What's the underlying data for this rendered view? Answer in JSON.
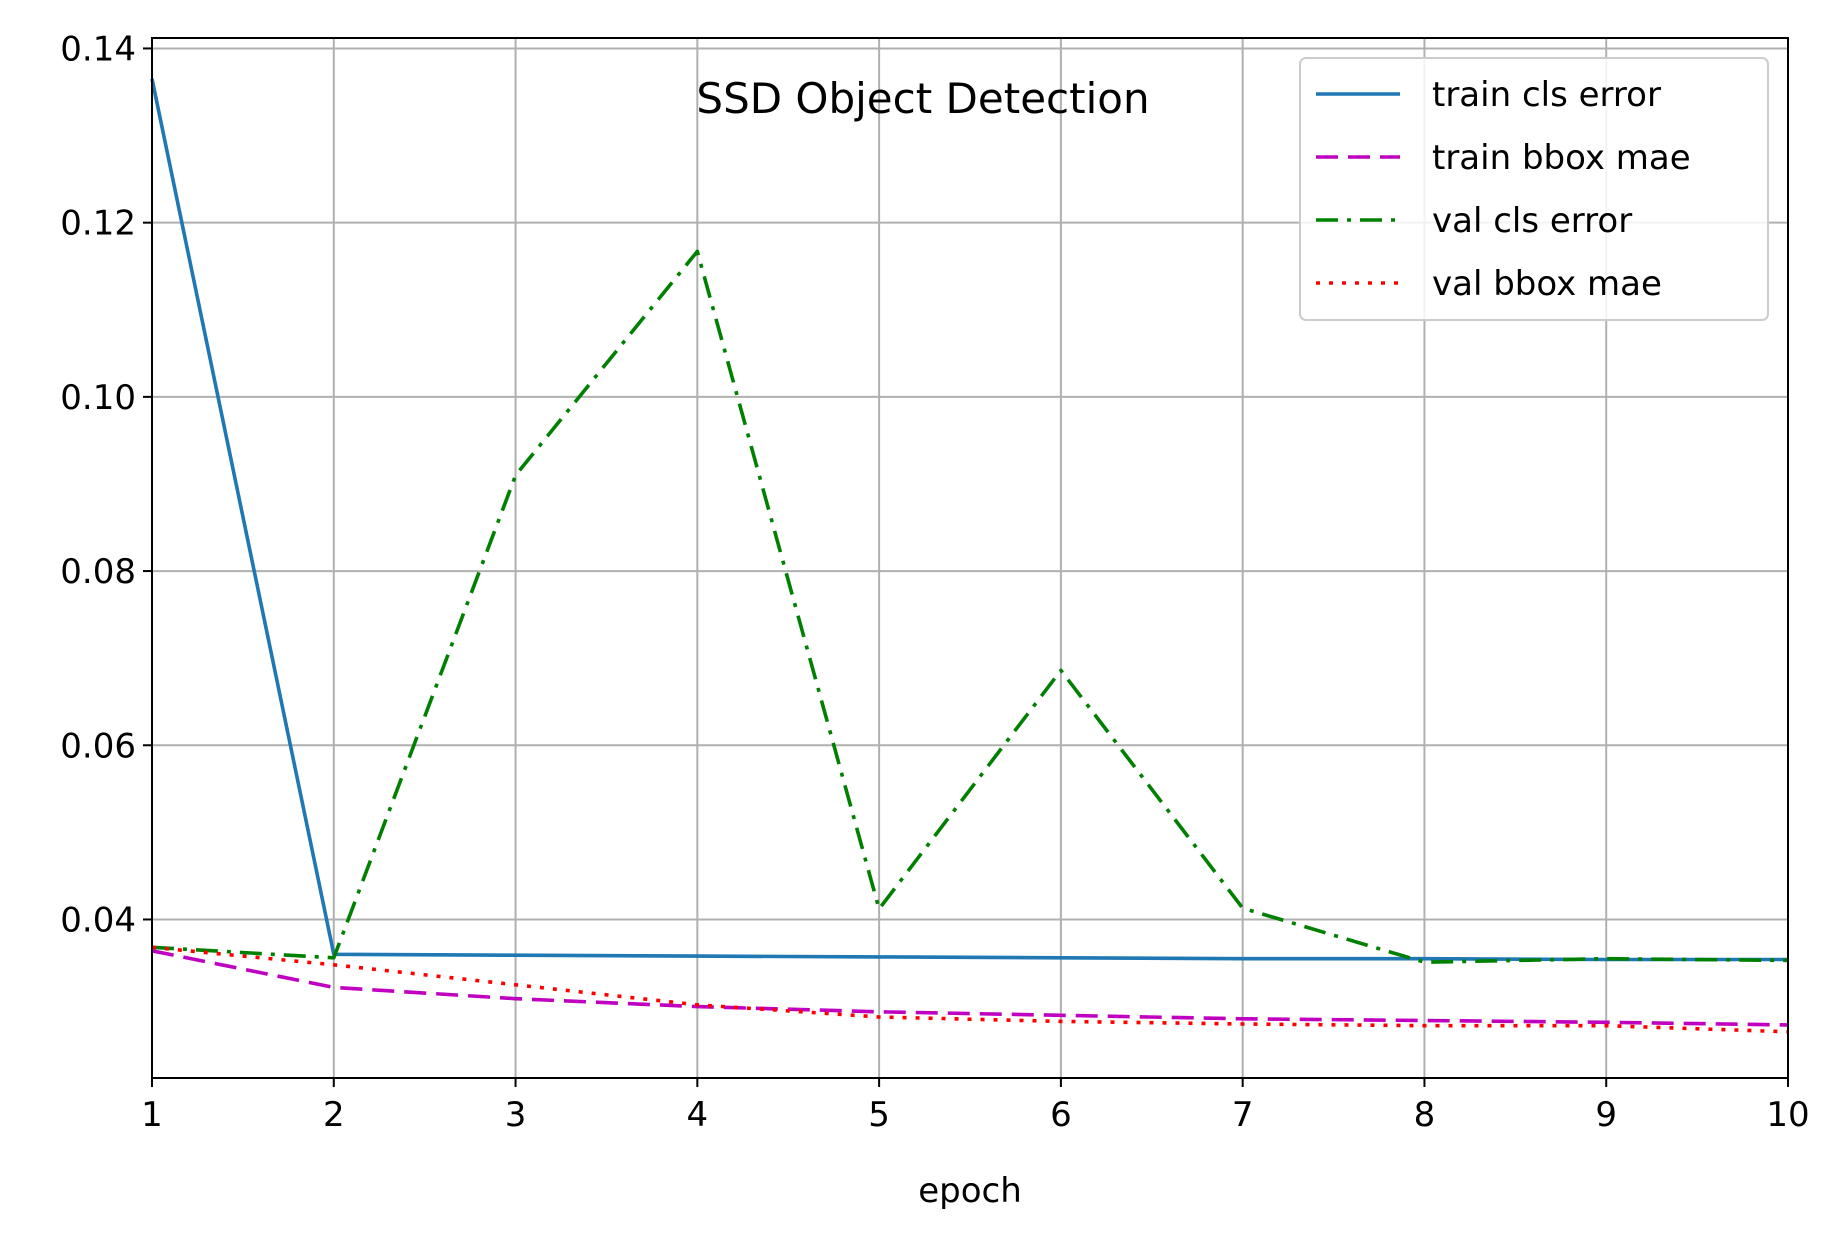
{
  "chart_data": {
    "type": "line",
    "title": "SSD Object Detection",
    "xlabel": "epoch",
    "ylabel": "",
    "x": [
      1,
      2,
      3,
      4,
      5,
      6,
      7,
      8,
      9,
      10
    ],
    "xlim": [
      1,
      10
    ],
    "ylim": [
      0.0218,
      0.1412
    ],
    "xticks": [
      1,
      2,
      3,
      4,
      5,
      6,
      7,
      8,
      9,
      10
    ],
    "xtick_labels": [
      "1",
      "2",
      "3",
      "4",
      "5",
      "6",
      "7",
      "8",
      "9",
      "10"
    ],
    "yticks": [
      0.04,
      0.06,
      0.08,
      0.1,
      0.12,
      0.14
    ],
    "ytick_labels": [
      "0.04",
      "0.06",
      "0.08",
      "0.10",
      "0.12",
      "0.14"
    ],
    "grid": true,
    "legend_position": "top-right",
    "series": [
      {
        "name": "train cls error",
        "color": "#1f77b4",
        "style": "solid",
        "values": [
          0.1365,
          0.036,
          0.0359,
          0.0358,
          0.0357,
          0.0356,
          0.0355,
          0.0355,
          0.0354,
          0.0354
        ]
      },
      {
        "name": "train bbox mae",
        "color": "#c000c0",
        "style": "dashed",
        "values": [
          0.0364,
          0.0322,
          0.0309,
          0.03,
          0.0294,
          0.029,
          0.0286,
          0.0284,
          0.0282,
          0.0279
        ]
      },
      {
        "name": "val cls error",
        "color": "#008000",
        "style": "dashdot",
        "values": [
          0.0368,
          0.0356,
          0.091,
          0.1167,
          0.0412,
          0.0686,
          0.0413,
          0.0351,
          0.0355,
          0.0353
        ]
      },
      {
        "name": "val bbox mae",
        "color": "#ff0000",
        "style": "dotted",
        "values": [
          0.0368,
          0.0348,
          0.0325,
          0.0302,
          0.0288,
          0.0283,
          0.028,
          0.0278,
          0.0278,
          0.0271
        ]
      }
    ]
  }
}
